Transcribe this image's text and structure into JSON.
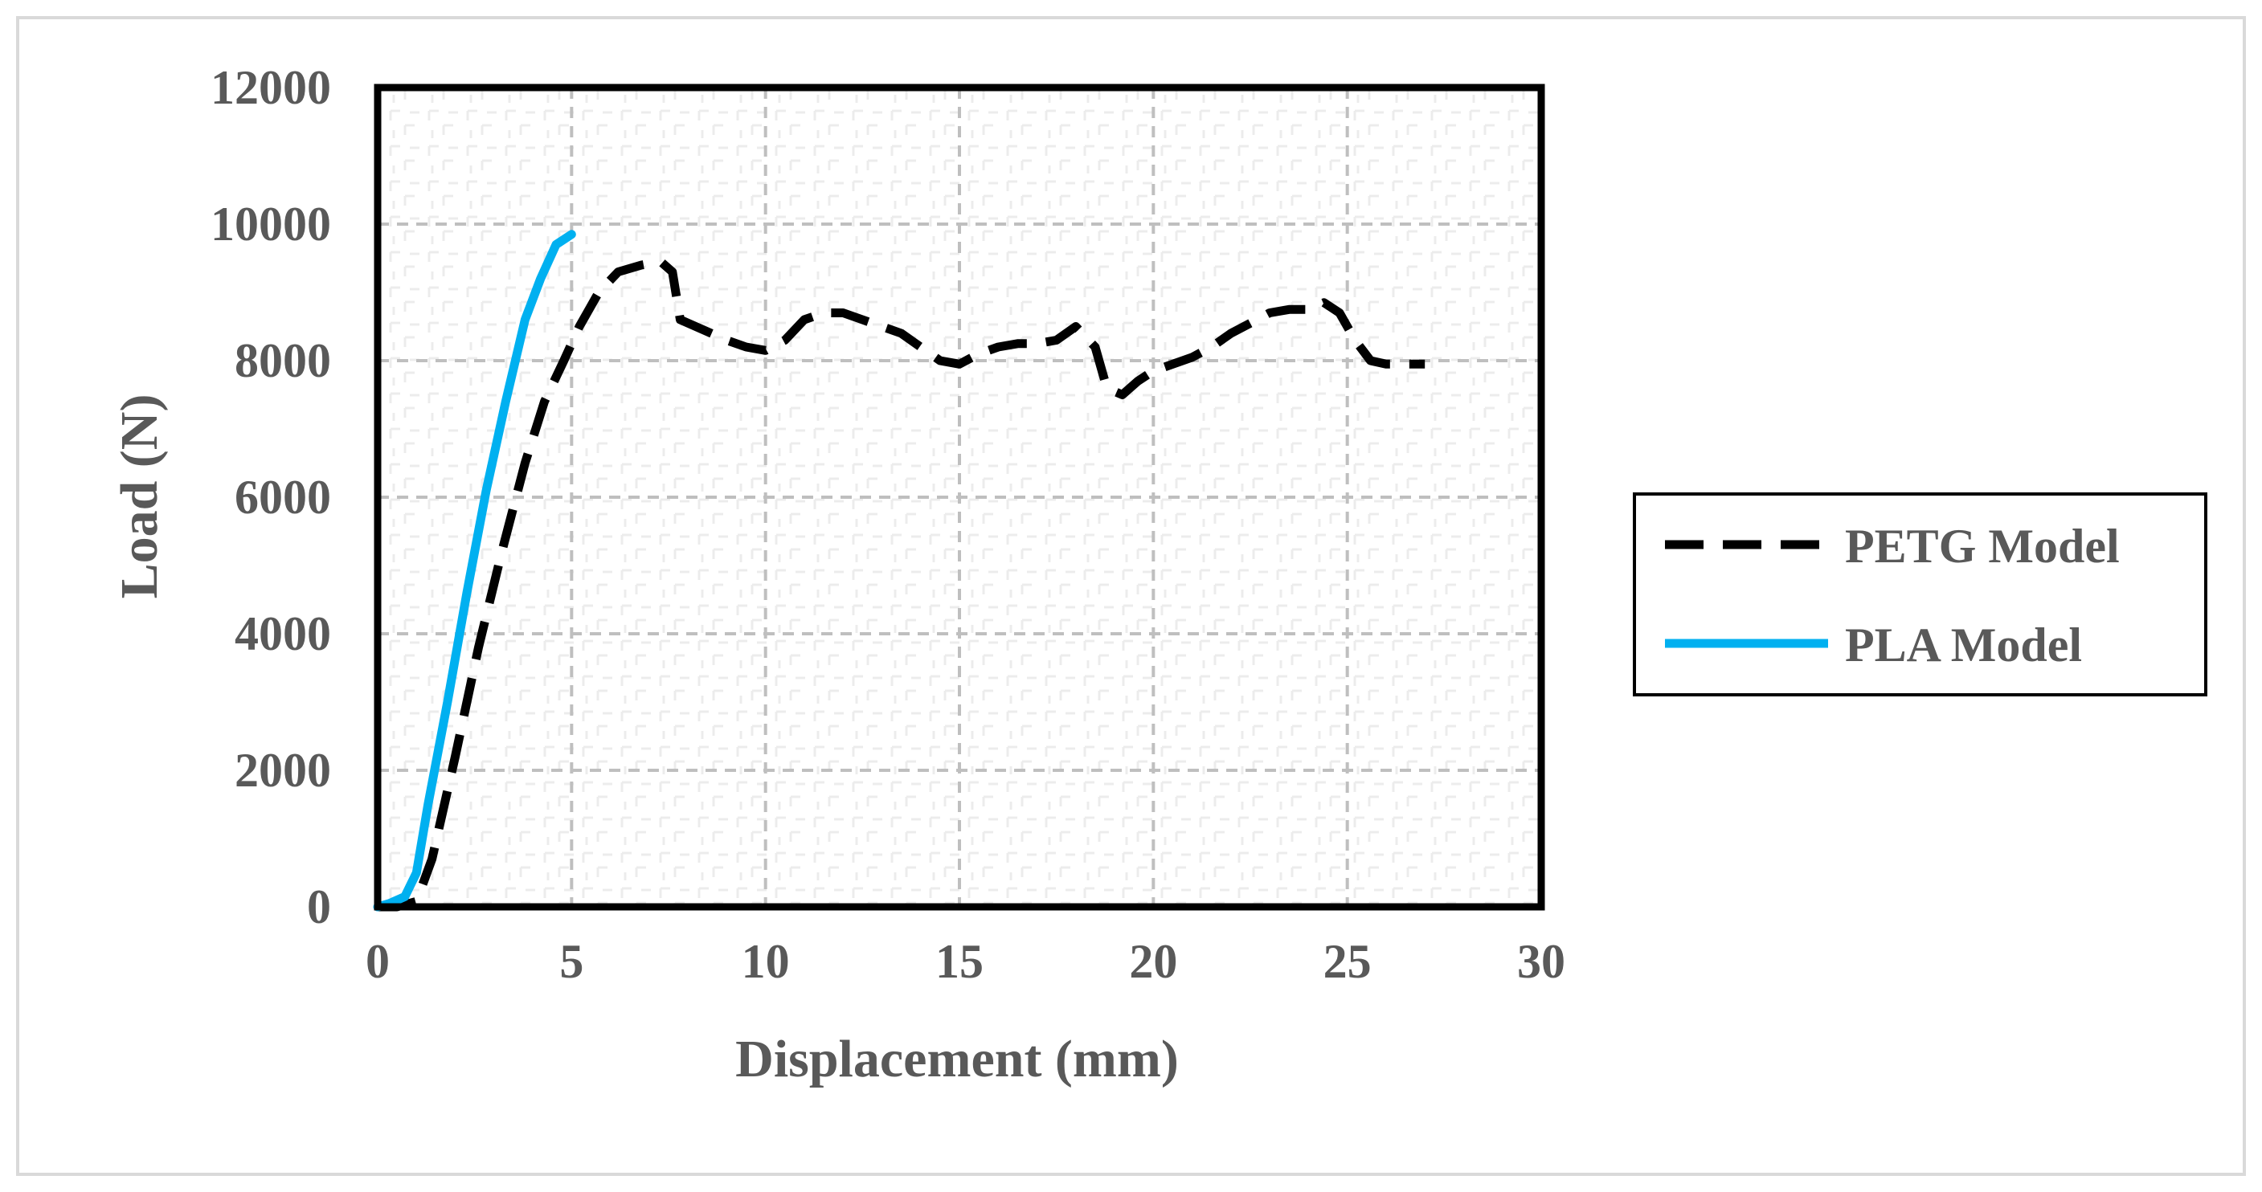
{
  "chart_data": {
    "type": "line",
    "title": "",
    "xlabel": "Displacement (mm)",
    "ylabel": "Load (N)",
    "xlim": [
      0,
      30
    ],
    "ylim": [
      0,
      12000
    ],
    "x_ticks": [
      "0",
      "5",
      "10",
      "15",
      "20",
      "25",
      "30"
    ],
    "y_ticks": [
      "0",
      "2000",
      "4000",
      "6000",
      "8000",
      "10000",
      "12000"
    ],
    "grid": true,
    "legend_position": "right",
    "series": [
      {
        "name": "PETG Model",
        "color": "#000000",
        "style": "dashed",
        "x": [
          0,
          0.5,
          1.0,
          1.4,
          2.0,
          2.6,
          3.2,
          3.8,
          4.3,
          4.8,
          5.2,
          5.7,
          6.2,
          6.8,
          7.3,
          7.6,
          7.8,
          8.2,
          8.6,
          9.0,
          9.5,
          10.0,
          10.5,
          11.0,
          11.5,
          12.0,
          12.5,
          13.0,
          13.5,
          14.0,
          14.5,
          15.0,
          15.5,
          16.0,
          16.5,
          17.0,
          17.5,
          18.0,
          18.5,
          18.8,
          19.2,
          19.6,
          20.0,
          20.5,
          21.0,
          21.5,
          22.0,
          22.5,
          23.0,
          23.5,
          24.0,
          24.4,
          24.8,
          25.2,
          25.6,
          26.0,
          26.5,
          27.0
        ],
        "y": [
          0,
          0,
          80,
          700,
          2200,
          3800,
          5200,
          6500,
          7400,
          8000,
          8500,
          9000,
          9300,
          9400,
          9450,
          9300,
          8600,
          8500,
          8400,
          8300,
          8200,
          8150,
          8300,
          8600,
          8700,
          8700,
          8600,
          8500,
          8400,
          8200,
          8000,
          7950,
          8100,
          8200,
          8250,
          8250,
          8300,
          8500,
          8200,
          7600,
          7500,
          7700,
          7850,
          7950,
          8050,
          8200,
          8400,
          8550,
          8700,
          8750,
          8750,
          8850,
          8700,
          8300,
          8000,
          7950,
          7950,
          7950
        ]
      },
      {
        "name": "PLA Model",
        "color": "#00B0F0",
        "style": "solid",
        "x": [
          0,
          0.3,
          0.7,
          1.0,
          1.3,
          1.8,
          2.3,
          2.8,
          3.3,
          3.8,
          4.2,
          4.6,
          5.0
        ],
        "y": [
          0,
          50,
          150,
          500,
          1500,
          3000,
          4600,
          6100,
          7400,
          8600,
          9200,
          9700,
          9850
        ]
      }
    ]
  }
}
